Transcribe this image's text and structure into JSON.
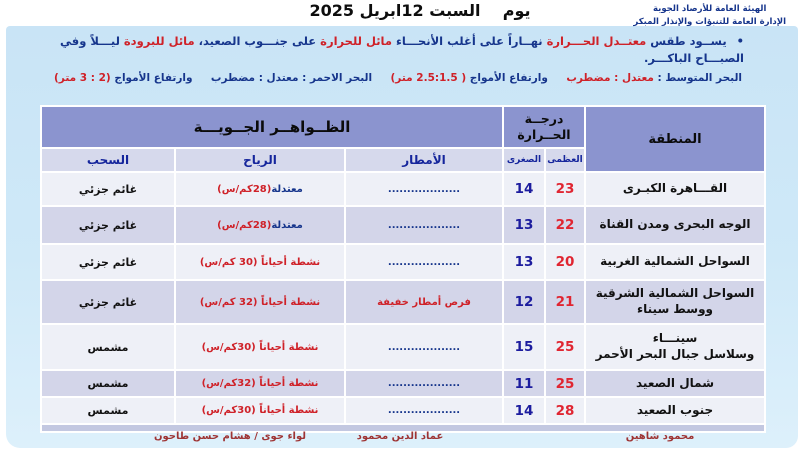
{
  "org": {
    "line1": "الهيئة العامة للأرصاد الجوية",
    "line2": "الإدارة العامة للتنبؤات والإنذار المبكر"
  },
  "title": "يوم    السبت 12ابريل 2025",
  "bullet": {
    "marker": "•",
    "segments": [
      {
        "t": "يســود طقس ",
        "c": "navy"
      },
      {
        "t": "معتــدل الحـــرارة ",
        "c": "red"
      },
      {
        "t": "نهــاراً على أغلب الأنحـــاء ",
        "c": "navy"
      },
      {
        "t": "مائل للحرارة ",
        "c": "red"
      },
      {
        "t": "على جنـــوب الصعيد، ",
        "c": "navy"
      },
      {
        "t": "مائل للبرودة ",
        "c": "red"
      },
      {
        "t": "ليـــلاً وفي الصبـــاح الباكـــر.",
        "c": "navy"
      }
    ]
  },
  "sea": {
    "groups": [
      [
        {
          "t": "البحر المتوسط : ",
          "c": "navy"
        },
        {
          "t": "معتدل : مضطرب",
          "c": "red"
        }
      ],
      [
        {
          "t": "وارتفاع الأمواج ",
          "c": "navy"
        },
        {
          "t": "( 2.5:1.5 متر)",
          "c": "red"
        }
      ],
      [
        {
          "t": "البحر الاحمر : معتدل : مضطرب",
          "c": "navy"
        }
      ],
      [
        {
          "t": "وارتفاع الأمواج ",
          "c": "navy"
        },
        {
          "t": "(2 : 3 متر)",
          "c": "red"
        }
      ]
    ]
  },
  "table": {
    "headers": {
      "region": "المنطقة",
      "temperature": "درجــة\nالحــرارة",
      "phenomena": "الظــواهــر الجــويـــة",
      "max": "العظمى",
      "min": "الصغرى",
      "rain": "الأمطار",
      "wind": "الرياح",
      "clouds": "السحب"
    },
    "rows": [
      {
        "region": "القـــاهرة الكبـرى",
        "max": "23",
        "min": "14",
        "rain": [
          {
            "t": "...................",
            "c": "navy"
          }
        ],
        "wind": [
          {
            "t": "معتدلة ",
            "c": "navy"
          },
          {
            "t": "(28كم/س)",
            "c": "red"
          }
        ],
        "clouds": "غائم جزئي"
      },
      {
        "region": "الوجه البحرى ومدن القناة",
        "max": "22",
        "min": "13",
        "rain": [
          {
            "t": "...................",
            "c": "navy"
          }
        ],
        "wind": [
          {
            "t": "معتدلة ",
            "c": "navy"
          },
          {
            "t": "(28كم/س)",
            "c": "red"
          }
        ],
        "clouds": "غائم جزئي"
      },
      {
        "region": "السواحل الشمالية الغربية",
        "max": "20",
        "min": "13",
        "rain": [
          {
            "t": "...................",
            "c": "navy"
          }
        ],
        "wind": [
          {
            "t": "نشطة أحياناً (30 كم/س)",
            "c": "red"
          }
        ],
        "clouds": "غائم جزئي"
      },
      {
        "region": "السواحل الشمالية الشرقية\nووسط سيناء",
        "max": "21",
        "min": "12",
        "rain": [
          {
            "t": "فرص أمطار خفيفة",
            "c": "red"
          }
        ],
        "wind": [
          {
            "t": "نشطة أحياناً (32 كم/س)",
            "c": "red"
          }
        ],
        "clouds": "غائم جزئي"
      },
      {
        "region": "سينـــاء\nوسلاسل جبال البحر الأحمر",
        "max": "25",
        "min": "15",
        "rain": [
          {
            "t": "...................",
            "c": "navy"
          }
        ],
        "wind": [
          {
            "t": "نشطة أحياناً (30كم/س)",
            "c": "red"
          }
        ],
        "clouds": "مشمس"
      },
      {
        "region": "شمال الصعيد",
        "max": "25",
        "min": "11",
        "rain": [
          {
            "t": "...................",
            "c": "navy"
          }
        ],
        "wind": [
          {
            "t": "نشطة أحياناً (32كم/س)",
            "c": "red"
          }
        ],
        "clouds": "مشمس"
      },
      {
        "region": "جنوب الصعيد",
        "max": "28",
        "min": "14",
        "rain": [
          {
            "t": "...................",
            "c": "navy"
          }
        ],
        "wind": [
          {
            "t": "نشطة أحياناً (30كم/س)",
            "c": "red"
          }
        ],
        "clouds": "مشمس"
      }
    ]
  },
  "footer": {
    "right": "محمود شاهين",
    "center": "عماد الدين محمود",
    "left": "لواء جوى / هشام حسن طاحون"
  },
  "colors": {
    "header_band": "#8b94cf",
    "subheader": "#d6d9ec",
    "row_light": "#eef0f7",
    "row_dark": "#d3d5e9",
    "max_red": "#e02531",
    "min_navy": "#1c1c9e",
    "navy_text": "#16358c",
    "red_text": "#cf2128",
    "footer_maroon": "#9e3434",
    "page_blue": "#c9e4f6",
    "band_strip": "#c3c8e1"
  }
}
